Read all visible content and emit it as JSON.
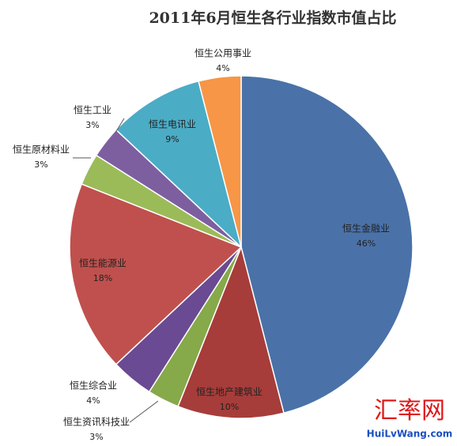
{
  "chart_data": {
    "type": "pie",
    "title": "2011年6月恒生各行业指数市值占比",
    "categories": [
      "恒生金融业",
      "恒生地产建筑业",
      "恒生资讯科技业",
      "恒生综合业",
      "恒生能源业",
      "恒生原材料业",
      "恒生工业",
      "恒生电讯业",
      "恒生公用事业"
    ],
    "values": [
      46,
      10,
      3,
      4,
      18,
      3,
      3,
      9,
      4
    ],
    "value_labels": [
      "46%",
      "10%",
      "3%",
      "4%",
      "18%",
      "3%",
      "3%",
      "9%",
      "4%"
    ],
    "colors": [
      "#4a72a8",
      "#a63d3a",
      "#86a94a",
      "#6a4a92",
      "#c0504d",
      "#9bbb59",
      "#7d5fa0",
      "#4bacc6",
      "#f79646"
    ],
    "watermark": {
      "text": "汇率网",
      "url": "HuiLvWang.com"
    }
  }
}
